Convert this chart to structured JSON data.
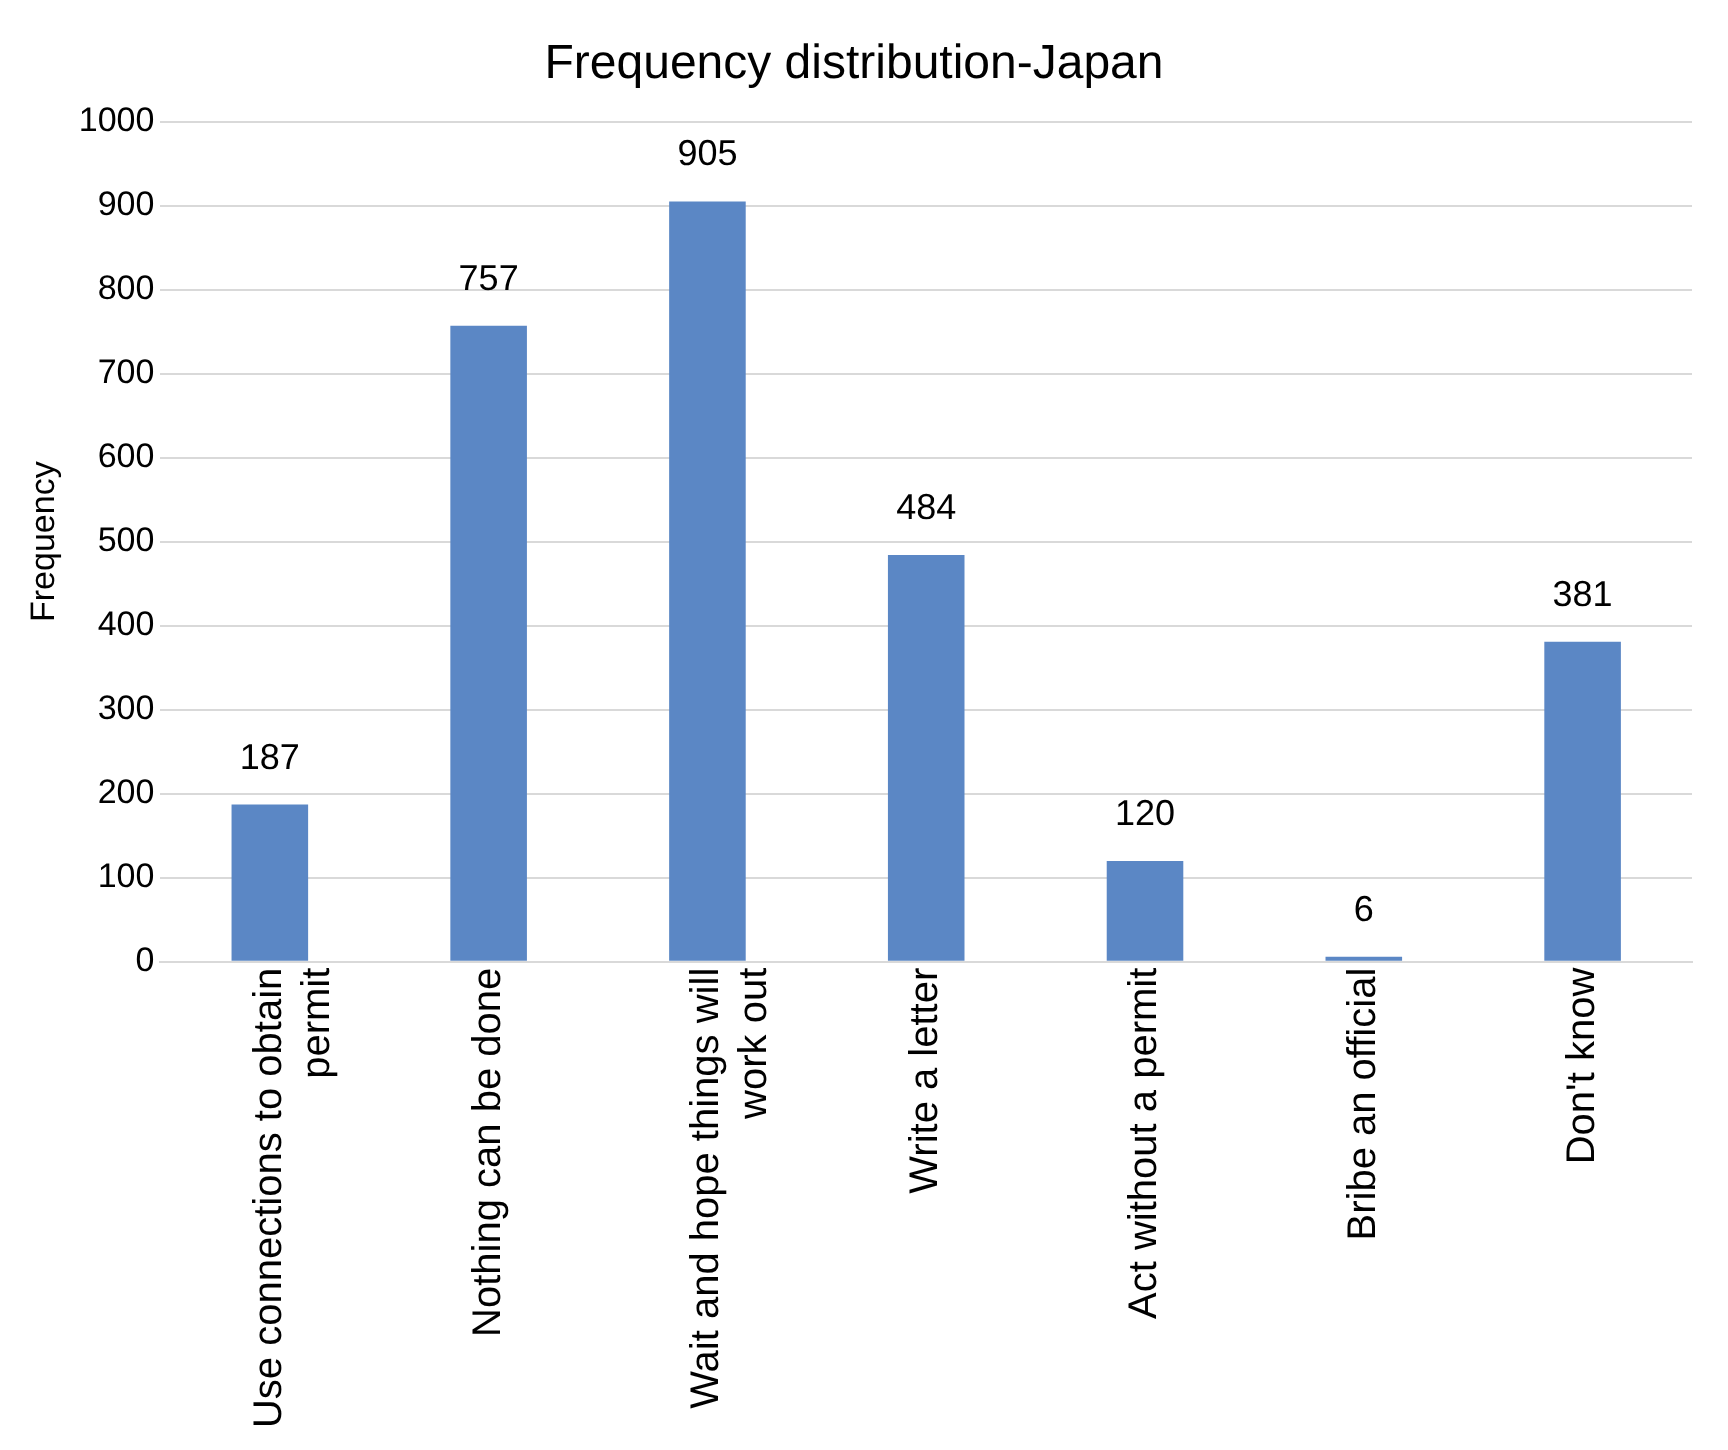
{
  "chart_data": {
    "type": "bar",
    "title": "Frequency distribution-Japan",
    "ylabel": "Frequency",
    "categories": [
      "Use connections to obtain permit",
      "Nothing can be done",
      "Wait and hope things will work out",
      "Write a letter",
      "Act without a permit",
      "Bribe an official",
      "Don't know"
    ],
    "values": [
      187,
      757,
      905,
      484,
      120,
      6,
      381
    ],
    "color": "#5b87c5",
    "ylim": [
      0,
      1000
    ],
    "yticks": [
      0,
      100,
      200,
      300,
      400,
      500,
      600,
      700,
      800,
      900,
      1000
    ],
    "grid": "y",
    "data_labels": true
  }
}
